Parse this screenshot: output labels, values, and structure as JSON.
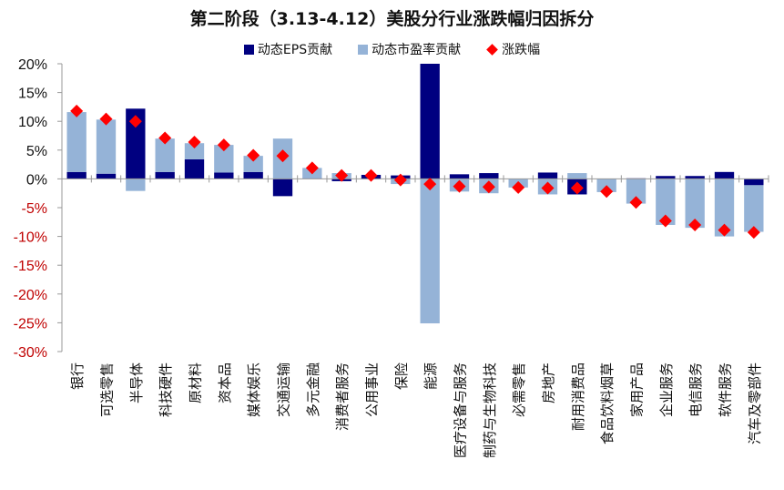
{
  "chart_data": {
    "type": "bar",
    "title": "第二阶段（3.13-4.12）美股分行业涨跌幅归因拆分",
    "categories": [
      "银行",
      "可选零售",
      "半导体",
      "科技硬件",
      "原材料",
      "资本品",
      "媒体娱乐",
      "交通运输",
      "多元金融",
      "消费者服务",
      "公用事业",
      "保险",
      "能源",
      "医疗设备与服务",
      "制药与生物科技",
      "必需零售",
      "房地产",
      "耐用消费品",
      "食品饮料烟草",
      "家用产品",
      "企业服务",
      "电信服务",
      "软件服务",
      "汽车及零部件"
    ],
    "series": [
      {
        "name": "动态EPS贡献",
        "kind": "stacked-bar",
        "color": "#000080",
        "values": [
          1.2,
          0.9,
          12.2,
          1.2,
          3.4,
          1.1,
          1.2,
          -3.0,
          0.1,
          -0.4,
          0.7,
          0.6,
          20.0,
          0.8,
          1.0,
          0.0,
          1.1,
          -2.7,
          0.0,
          0.1,
          0.5,
          0.5,
          1.2,
          -1.1
        ]
      },
      {
        "name": "动态市盈率贡献",
        "kind": "stacked-bar",
        "color": "#95B3D7",
        "values": [
          10.4,
          9.4,
          -2.1,
          5.8,
          2.8,
          4.8,
          2.8,
          7.0,
          1.8,
          1.0,
          -0.1,
          -0.9,
          -25.1,
          -2.2,
          -2.5,
          -1.5,
          -2.7,
          1.0,
          -2.3,
          -4.3,
          -8.0,
          -8.5,
          -10.0,
          -8.1
        ]
      },
      {
        "name": "涨跌幅",
        "kind": "marker",
        "color": "#FF0000",
        "values": [
          11.8,
          10.4,
          10.0,
          7.1,
          6.4,
          5.9,
          4.1,
          4.0,
          1.9,
          0.6,
          0.6,
          -0.2,
          -0.9,
          -1.3,
          -1.4,
          -1.5,
          -1.6,
          -1.6,
          -2.2,
          -4.1,
          -7.3,
          -8.0,
          -8.9,
          -9.3
        ]
      }
    ],
    "ylim": [
      -30,
      20
    ],
    "yticks": [
      20,
      15,
      10,
      5,
      0,
      -5,
      -10,
      -15,
      -20,
      -25,
      -30
    ],
    "ytick_labels": [
      "20%",
      "15%",
      "10%",
      "5%",
      "0%",
      "-5%",
      "-10%",
      "-15%",
      "-20%",
      "-25%",
      "-30%"
    ],
    "negative_tick_color": "#C00000",
    "grid": false,
    "legend": "top"
  }
}
